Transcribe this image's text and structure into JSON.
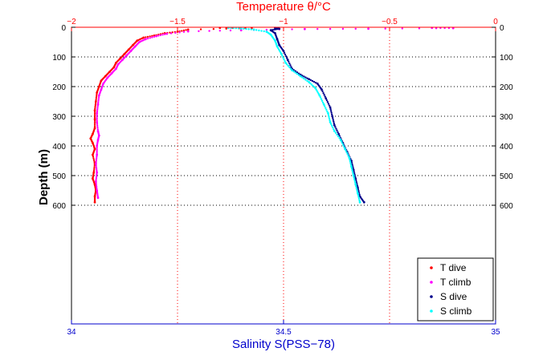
{
  "chart_data": {
    "type": "scatter",
    "top_axis_title": "Temperature θ/°C",
    "bottom_axis_title": "Salinity S(PSS−78)",
    "ylabel": "Depth (m)",
    "temperature_axis": {
      "range": [
        -2,
        0
      ],
      "ticks": [
        -2,
        -1.5,
        -1,
        -0.5,
        0
      ],
      "tick_labels": [
        "−2",
        "−1.5",
        "−1",
        "−0.5",
        "0"
      ],
      "color": "#ff0000"
    },
    "salinity_axis": {
      "range": [
        34,
        35
      ],
      "ticks": [
        34,
        34.5,
        35
      ],
      "tick_labels": [
        "34",
        "34.5",
        "35"
      ],
      "color": "#0000cc"
    },
    "depth_axis": {
      "range": [
        0,
        1000
      ],
      "reversed": true,
      "ticks": [
        0,
        100,
        200,
        300,
        400,
        500,
        600
      ],
      "tick_labels": [
        "0",
        "100",
        "200",
        "300",
        "400",
        "500",
        "600"
      ]
    },
    "grid": true,
    "legend_position": "bottom-right",
    "series": [
      {
        "name": "T dive",
        "axis": "temperature",
        "color": "#ff0000",
        "points": [
          [
            -1.3,
            2
          ],
          [
            -1.15,
            3
          ],
          [
            -1.45,
            8
          ],
          [
            -1.5,
            15
          ],
          [
            -1.56,
            20
          ],
          [
            -1.61,
            28
          ],
          [
            -1.66,
            35
          ],
          [
            -1.69,
            45
          ],
          [
            -1.71,
            60
          ],
          [
            -1.73,
            75
          ],
          [
            -1.75,
            90
          ],
          [
            -1.77,
            105
          ],
          [
            -1.79,
            120
          ],
          [
            -1.8,
            135
          ],
          [
            -1.82,
            150
          ],
          [
            -1.84,
            165
          ],
          [
            -1.86,
            180
          ],
          [
            -1.87,
            200
          ],
          [
            -1.88,
            220
          ],
          [
            -1.885,
            250
          ],
          [
            -1.89,
            280
          ],
          [
            -1.89,
            310
          ],
          [
            -1.89,
            340
          ],
          [
            -1.9,
            360
          ],
          [
            -1.91,
            375
          ],
          [
            -1.9,
            390
          ],
          [
            -1.89,
            410
          ],
          [
            -1.9,
            430
          ],
          [
            -1.89,
            460
          ],
          [
            -1.895,
            490
          ],
          [
            -1.9,
            510
          ],
          [
            -1.89,
            530
          ],
          [
            -1.885,
            550
          ],
          [
            -1.89,
            570
          ],
          [
            -1.89,
            590
          ]
        ]
      },
      {
        "name": "T climb",
        "axis": "temperature",
        "color": "#ff00ff",
        "points": [
          [
            -0.3,
            2
          ],
          [
            -0.2,
            3
          ],
          [
            -0.6,
            5
          ],
          [
            -0.9,
            6
          ],
          [
            -1.2,
            10
          ],
          [
            -1.45,
            14
          ],
          [
            -1.55,
            22
          ],
          [
            -1.6,
            30
          ],
          [
            -1.65,
            40
          ],
          [
            -1.68,
            50
          ],
          [
            -1.7,
            65
          ],
          [
            -1.72,
            80
          ],
          [
            -1.74,
            95
          ],
          [
            -1.76,
            110
          ],
          [
            -1.78,
            125
          ],
          [
            -1.79,
            140
          ],
          [
            -1.81,
            155
          ],
          [
            -1.83,
            170
          ],
          [
            -1.85,
            190
          ],
          [
            -1.86,
            210
          ],
          [
            -1.87,
            230
          ],
          [
            -1.875,
            260
          ],
          [
            -1.88,
            290
          ],
          [
            -1.88,
            320
          ],
          [
            -1.875,
            350
          ],
          [
            -1.87,
            365
          ],
          [
            -1.875,
            380
          ],
          [
            -1.88,
            400
          ],
          [
            -1.88,
            430
          ],
          [
            -1.885,
            460
          ],
          [
            -1.88,
            490
          ],
          [
            -1.885,
            520
          ],
          [
            -1.88,
            550
          ],
          [
            -1.875,
            575
          ]
        ]
      },
      {
        "name": "S dive",
        "axis": "salinity",
        "color": "#00008b",
        "points": [
          [
            34.48,
            2
          ],
          [
            34.49,
            5
          ],
          [
            34.47,
            10
          ],
          [
            34.48,
            20
          ],
          [
            34.485,
            40
          ],
          [
            34.49,
            60
          ],
          [
            34.5,
            80
          ],
          [
            34.51,
            110
          ],
          [
            34.52,
            140
          ],
          [
            34.54,
            160
          ],
          [
            34.56,
            175
          ],
          [
            34.58,
            190
          ],
          [
            34.59,
            210
          ],
          [
            34.6,
            240
          ],
          [
            34.61,
            270
          ],
          [
            34.615,
            300
          ],
          [
            34.62,
            330
          ],
          [
            34.63,
            360
          ],
          [
            34.64,
            390
          ],
          [
            34.65,
            420
          ],
          [
            34.66,
            450
          ],
          [
            34.665,
            480
          ],
          [
            34.67,
            510
          ],
          [
            34.675,
            540
          ],
          [
            34.68,
            570
          ],
          [
            34.69,
            590
          ]
        ]
      },
      {
        "name": "S climb",
        "axis": "salinity",
        "color": "#00ffff",
        "points": [
          [
            34.37,
            2
          ],
          [
            34.4,
            4
          ],
          [
            34.43,
            8
          ],
          [
            34.46,
            15
          ],
          [
            34.47,
            25
          ],
          [
            34.48,
            45
          ],
          [
            34.485,
            65
          ],
          [
            34.495,
            90
          ],
          [
            34.505,
            120
          ],
          [
            34.52,
            145
          ],
          [
            34.54,
            165
          ],
          [
            34.56,
            185
          ],
          [
            34.575,
            205
          ],
          [
            34.585,
            230
          ],
          [
            34.595,
            260
          ],
          [
            34.605,
            290
          ],
          [
            34.61,
            320
          ],
          [
            34.62,
            350
          ],
          [
            34.635,
            380
          ],
          [
            34.645,
            410
          ],
          [
            34.655,
            440
          ],
          [
            34.66,
            470
          ],
          [
            34.665,
            500
          ],
          [
            34.67,
            530
          ],
          [
            34.675,
            560
          ],
          [
            34.68,
            590
          ]
        ]
      }
    ]
  }
}
